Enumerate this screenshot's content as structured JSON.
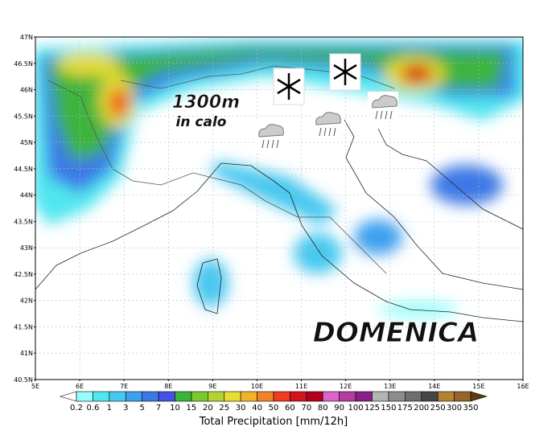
{
  "map": {
    "lat_ticks": [
      "47N",
      "46.5N",
      "46N",
      "45.5N",
      "45N",
      "44.5N",
      "44N",
      "43.5N",
      "43N",
      "42.5N",
      "42N",
      "41.5N",
      "41N",
      "40.5N"
    ],
    "lon_ticks": [
      "5E",
      "6E",
      "7E",
      "8E",
      "9E",
      "10E",
      "11E",
      "12E",
      "13E",
      "14E",
      "15E",
      "16E"
    ],
    "annotations": {
      "altitude": "1300m",
      "trend": "in calo",
      "day": "DOMENICA"
    }
  },
  "legend": {
    "labels": [
      "0.2",
      "0.6",
      "1",
      "3",
      "5",
      "7",
      "10",
      "15",
      "20",
      "25",
      "30",
      "40",
      "50",
      "60",
      "70",
      "80",
      "90",
      "100",
      "125",
      "150",
      "175",
      "200",
      "250",
      "300",
      "350"
    ],
    "colors": [
      "#ffffff",
      "#96fcfc",
      "#50e6f0",
      "#46c8f0",
      "#3ca0f0",
      "#3c78e6",
      "#4650e6",
      "#3cb43c",
      "#78c832",
      "#b4d232",
      "#e6dc32",
      "#f0b428",
      "#f08228",
      "#f03c1e",
      "#d2141e",
      "#b4001e",
      "#dc64c8",
      "#b43ca0",
      "#8c1e8c",
      "#b4b4b4",
      "#8c8c8c",
      "#6e6e6e",
      "#464646",
      "#b48232",
      "#966428",
      "#5a3c14"
    ],
    "title": "Total Precipitation [mm/12h]"
  }
}
